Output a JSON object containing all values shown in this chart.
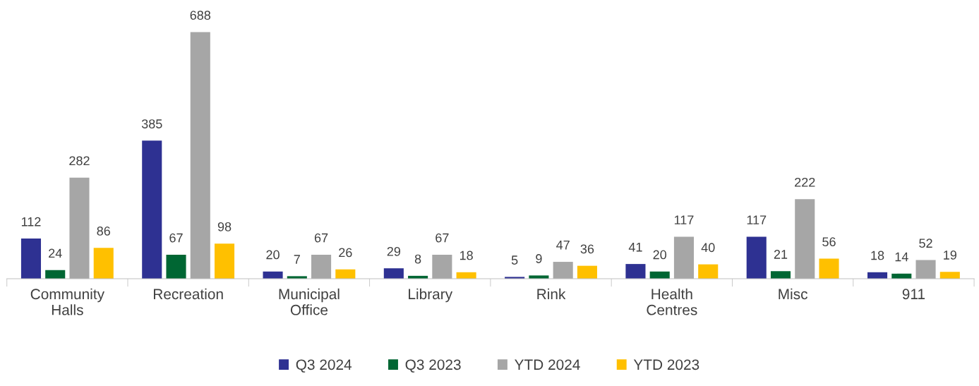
{
  "chart_data": {
    "type": "bar",
    "categories": [
      "Community Halls",
      "Recreation",
      "Municipal Office",
      "Library",
      "Rink",
      "Health Centres",
      "Misc",
      "911"
    ],
    "series": [
      {
        "name": "Q3 2024",
        "color": "#2e3192",
        "values": [
          112,
          385,
          20,
          29,
          5,
          41,
          117,
          18
        ]
      },
      {
        "name": "Q3 2023",
        "color": "#006633",
        "values": [
          24,
          67,
          7,
          8,
          9,
          20,
          21,
          14
        ]
      },
      {
        "name": "YTD 2024",
        "color": "#a6a6a6",
        "values": [
          282,
          688,
          67,
          67,
          47,
          117,
          222,
          52
        ]
      },
      {
        "name": "YTD 2023",
        "color": "#ffc000",
        "values": [
          86,
          98,
          26,
          18,
          36,
          40,
          56,
          19
        ]
      }
    ],
    "data_labels": true,
    "legend": "bottom",
    "grid": false
  }
}
